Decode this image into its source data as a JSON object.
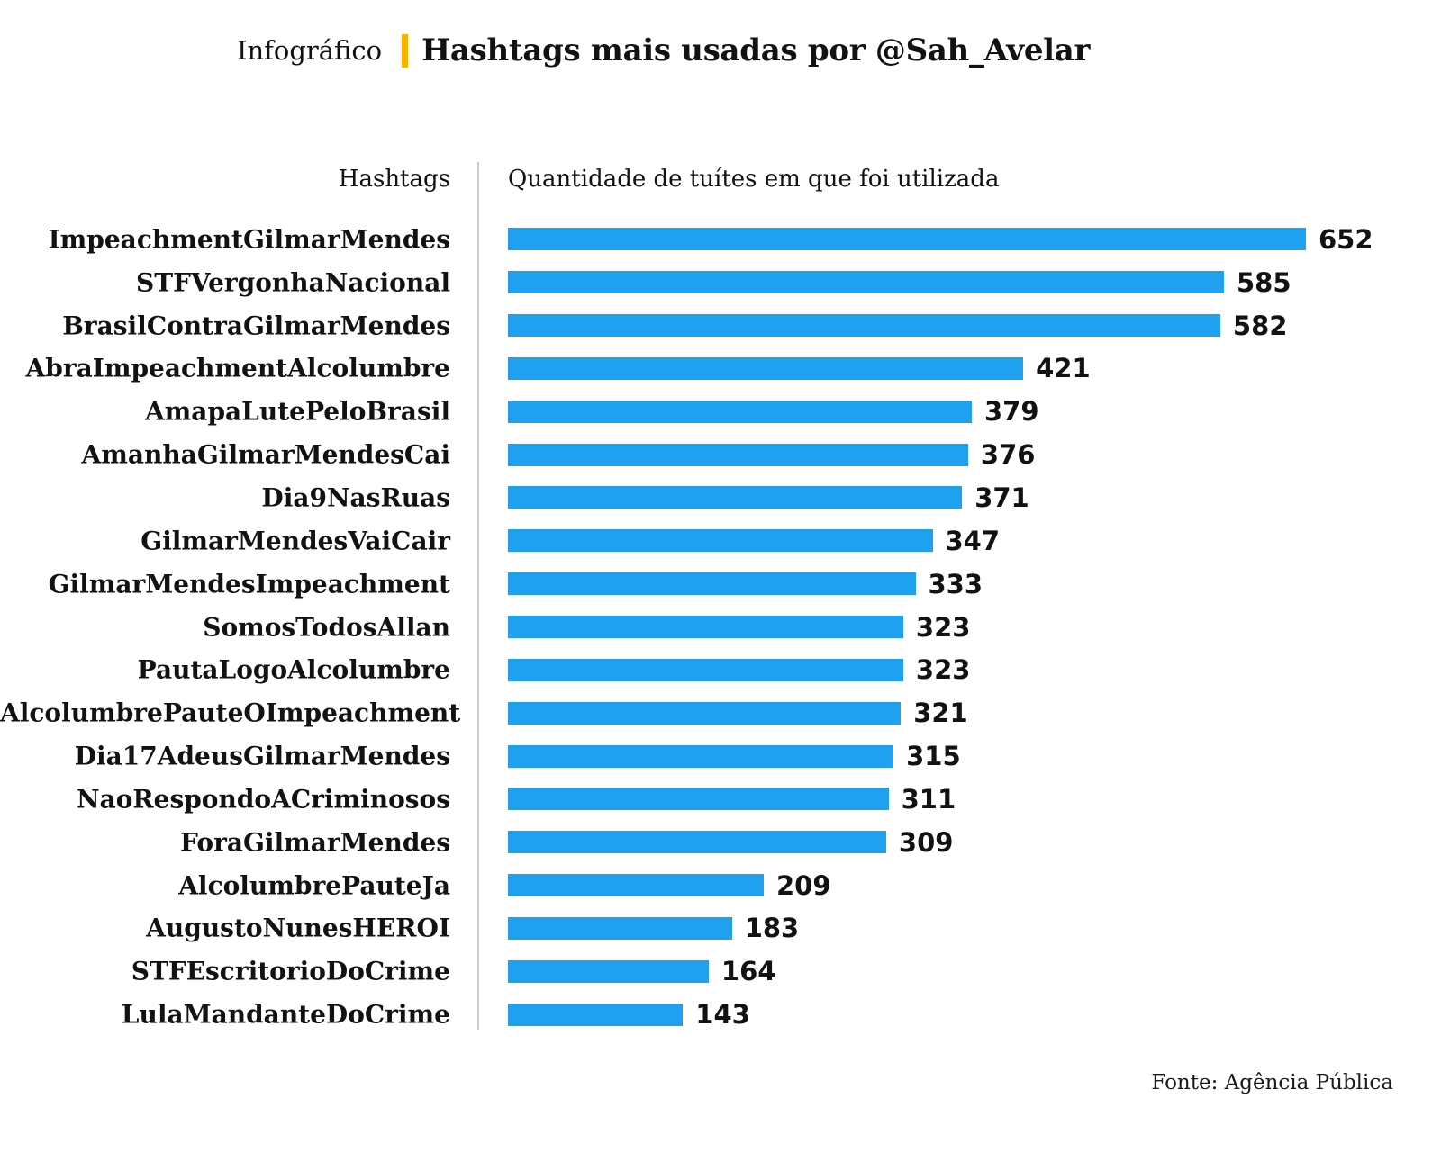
{
  "header": {
    "kicker": "Infográfico",
    "title": "Hashtags mais usadas por @Sah_Avelar",
    "accent_color": "#F9B200"
  },
  "chart_data": {
    "type": "bar",
    "orientation": "horizontal",
    "col_header_left": "Hashtags",
    "col_header_right": "Quantidade de tuítes em que foi utilizada",
    "categories": [
      "ImpeachmentGilmarMendes",
      "STFVergonhaNacional",
      "BrasilContraGilmarMendes",
      "AbraImpeachmentAlcolumbre",
      "AmapaLutePeloBrasil",
      "AmanhaGilmarMendesCai",
      "Dia9NasRuas",
      "GilmarMendesVaiCair",
      "GilmarMendesImpeachment",
      "SomosTodosAllan",
      "PautaLogoAlcolumbre",
      "AlcolumbrePauteOImpeachment",
      "Dia17AdeusGilmarMendes",
      "NaoRespondoACriminosos",
      "ForaGilmarMendes",
      "AlcolumbrePauteJa",
      "AugustoNunesHEROI",
      "STFEscritorioDoCrime",
      "LulaMandanteDoCrime"
    ],
    "values": [
      652,
      585,
      582,
      421,
      379,
      376,
      371,
      347,
      333,
      323,
      323,
      321,
      315,
      311,
      309,
      209,
      183,
      164,
      143
    ],
    "xlim": [
      0,
      652
    ],
    "bar_color": "#1FA1F0",
    "value_labels_shown": true,
    "grid": false,
    "legend": false
  },
  "footer": {
    "source": "Fonte: Agência Pública"
  }
}
